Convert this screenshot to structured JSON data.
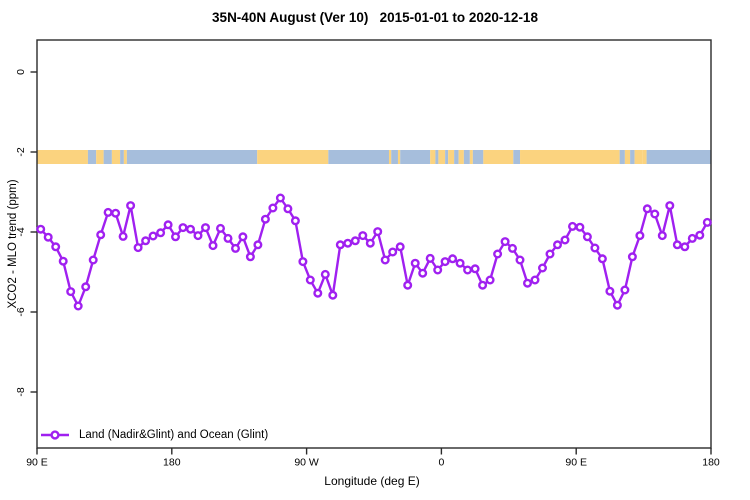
{
  "title": "35N-40N August (Ver 10)   2015-01-01 to 2020-12-18",
  "legend": {
    "position": "bottom-left",
    "entries": [
      {
        "label": "Land (Nadir&Glint) and Ocean (Glint)",
        "color": "#a020f0",
        "marker": "open-circle-on-line"
      }
    ]
  },
  "colors": {
    "series_purple": "#a020f0",
    "band_land": "#fbd37f",
    "band_ocean": "#a6bedc",
    "axis": "#2a2a2a",
    "marker_fill": "#ffffff"
  },
  "chart_data": {
    "type": "line",
    "title": "35N-40N August (Ver 10)   2015-01-01 to 2020-12-18",
    "xlabel": "Longitude (deg E)",
    "ylabel": "XCO2 - MLO trend (ppm)",
    "xlim": [
      90,
      540
    ],
    "ylim": [
      -9.4,
      0.8
    ],
    "grid": false,
    "x_ticks": [
      {
        "value": 90,
        "label": "90 E"
      },
      {
        "value": 180,
        "label": "180"
      },
      {
        "value": 270,
        "label": "90 W"
      },
      {
        "value": 360,
        "label": "0"
      },
      {
        "value": 450,
        "label": "90 E"
      },
      {
        "value": 540,
        "label": "180"
      }
    ],
    "y_ticks": [
      {
        "value": 0,
        "label": "0"
      },
      {
        "value": -2,
        "label": "-2"
      },
      {
        "value": -4,
        "label": "-4"
      },
      {
        "value": -6,
        "label": "-6"
      },
      {
        "value": -8,
        "label": "-8"
      }
    ],
    "series": [
      {
        "name": "Land (Nadir&Glint) and Ocean (Glint)",
        "color": "#a020f0",
        "marker": "open-circle",
        "x": [
          92.5,
          97.5,
          102.5,
          107.5,
          112.5,
          117.5,
          122.5,
          127.5,
          132.5,
          137.5,
          142.5,
          147.5,
          152.5,
          157.5,
          162.5,
          167.5,
          172.5,
          177.5,
          182.5,
          187.5,
          192.5,
          197.5,
          202.5,
          207.5,
          212.5,
          217.5,
          222.5,
          227.5,
          232.5,
          237.5,
          242.5,
          247.5,
          252.5,
          257.5,
          262.5,
          267.5,
          272.5,
          277.5,
          282.5,
          287.5,
          292.5,
          297.5,
          302.5,
          307.5,
          312.5,
          317.5,
          322.5,
          327.5,
          332.5,
          337.5,
          342.5,
          347.5,
          352.5,
          357.5,
          362.5,
          367.5,
          372.5,
          377.5,
          382.5,
          387.5,
          392.5,
          397.5,
          402.5,
          407.5,
          412.5,
          417.5,
          422.5,
          427.5,
          432.5,
          437.5,
          442.5,
          447.5,
          452.5,
          457.5,
          462.5,
          467.5,
          472.5,
          477.5,
          482.5,
          487.5,
          492.5,
          497.5,
          502.5,
          507.5,
          512.5,
          517.5,
          522.5,
          527.5,
          532.5,
          537.5
        ],
        "y": [
          -3.93,
          -4.13,
          -4.37,
          -4.73,
          -5.49,
          -5.85,
          -5.37,
          -4.7,
          -4.07,
          -3.51,
          -3.53,
          -4.11,
          -3.34,
          -4.39,
          -4.22,
          -4.1,
          -4.02,
          -3.82,
          -4.12,
          -3.89,
          -3.93,
          -4.09,
          -3.89,
          -4.34,
          -3.91,
          -4.16,
          -4.41,
          -4.12,
          -4.62,
          -4.32,
          -3.68,
          -3.4,
          -3.15,
          -3.42,
          -3.72,
          -4.74,
          -5.2,
          -5.53,
          -5.06,
          -5.58,
          -4.32,
          -4.28,
          -4.22,
          -4.09,
          -4.28,
          -3.99,
          -4.7,
          -4.5,
          -4.37,
          -5.33,
          -4.78,
          -5.03,
          -4.66,
          -4.95,
          -4.74,
          -4.67,
          -4.78,
          -4.95,
          -4.92,
          -5.33,
          -5.2,
          -4.55,
          -4.24,
          -4.41,
          -4.7,
          -5.28,
          -5.2,
          -4.9,
          -4.55,
          -4.32,
          -4.2,
          -3.86,
          -3.88,
          -4.12,
          -4.4,
          -4.67,
          -5.48,
          -5.83,
          -5.45,
          -4.62,
          -4.09,
          -3.42,
          -3.55,
          -4.09,
          -3.34,
          -4.32,
          -4.37,
          -4.16,
          -4.08,
          -3.76
        ]
      }
    ],
    "surface_band": {
      "description": "land/ocean strip along 35N-40N",
      "y_range": [
        -1.95,
        -2.3
      ],
      "land_color": "#fbd37f",
      "ocean_color": "#a6bedc",
      "segments": [
        {
          "from": 90,
          "to": 124,
          "type": "land"
        },
        {
          "from": 124,
          "to": 129.5,
          "type": "ocean"
        },
        {
          "from": 129.5,
          "to": 134.5,
          "type": "land"
        },
        {
          "from": 134.5,
          "to": 140,
          "type": "ocean"
        },
        {
          "from": 140,
          "to": 145.5,
          "type": "land"
        },
        {
          "from": 145.5,
          "to": 148,
          "type": "ocean"
        },
        {
          "from": 148,
          "to": 150,
          "type": "land"
        },
        {
          "from": 150,
          "to": 237,
          "type": "ocean"
        },
        {
          "from": 237,
          "to": 284.5,
          "type": "land"
        },
        {
          "from": 284.5,
          "to": 325,
          "type": "ocean"
        },
        {
          "from": 325,
          "to": 326.5,
          "type": "land"
        },
        {
          "from": 326.5,
          "to": 331,
          "type": "ocean"
        },
        {
          "from": 331,
          "to": 332.5,
          "type": "land"
        },
        {
          "from": 332.5,
          "to": 352.5,
          "type": "ocean"
        },
        {
          "from": 352.5,
          "to": 356,
          "type": "land"
        },
        {
          "from": 356,
          "to": 358,
          "type": "ocean"
        },
        {
          "from": 358,
          "to": 362.5,
          "type": "land"
        },
        {
          "from": 362.5,
          "to": 364.5,
          "type": "ocean"
        },
        {
          "from": 364.5,
          "to": 368.5,
          "type": "land"
        },
        {
          "from": 368.5,
          "to": 371.5,
          "type": "ocean"
        },
        {
          "from": 371.5,
          "to": 375,
          "type": "land"
        },
        {
          "from": 375,
          "to": 379,
          "type": "ocean"
        },
        {
          "from": 379,
          "to": 381,
          "type": "land"
        },
        {
          "from": 381,
          "to": 388,
          "type": "ocean"
        },
        {
          "from": 388,
          "to": 408,
          "type": "land"
        },
        {
          "from": 408,
          "to": 412.5,
          "type": "ocean"
        },
        {
          "from": 412.5,
          "to": 479,
          "type": "land"
        },
        {
          "from": 479,
          "to": 482.5,
          "type": "ocean"
        },
        {
          "from": 482.5,
          "to": 486,
          "type": "land"
        },
        {
          "from": 486,
          "to": 489,
          "type": "ocean"
        },
        {
          "from": 489,
          "to": 494.5,
          "type": "land"
        },
        {
          "from": 494.5,
          "to": 497,
          "type": "land"
        },
        {
          "from": 497,
          "to": 540,
          "type": "ocean"
        }
      ]
    }
  }
}
